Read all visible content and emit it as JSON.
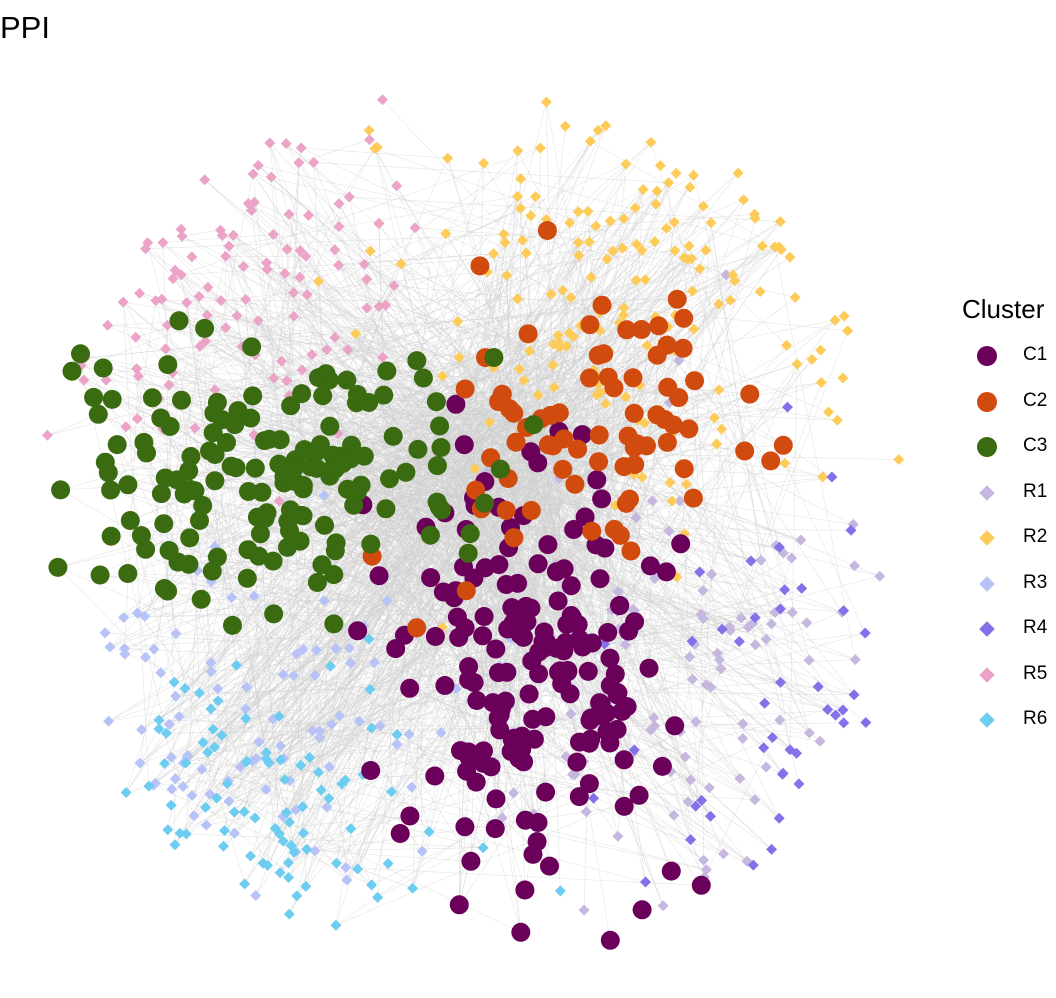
{
  "title": "PPI",
  "legend": {
    "title": "Cluster",
    "items": [
      {
        "label": "C1",
        "color": "#6b005b",
        "shape": "circle"
      },
      {
        "label": "C2",
        "color": "#d14b0e",
        "shape": "circle"
      },
      {
        "label": "C3",
        "color": "#3b6b10",
        "shape": "circle"
      },
      {
        "label": "R1",
        "color": "#c5b7de",
        "shape": "diamond"
      },
      {
        "label": "R2",
        "color": "#fdcb58",
        "shape": "diamond"
      },
      {
        "label": "R3",
        "color": "#b7c3f7",
        "shape": "diamond"
      },
      {
        "label": "R4",
        "color": "#8470e8",
        "shape": "diamond"
      },
      {
        "label": "R5",
        "color": "#eba4c8",
        "shape": "diamond"
      },
      {
        "label": "R6",
        "color": "#6ccdf0",
        "shape": "diamond"
      }
    ]
  },
  "edge_color": "#cfcfcf"
}
